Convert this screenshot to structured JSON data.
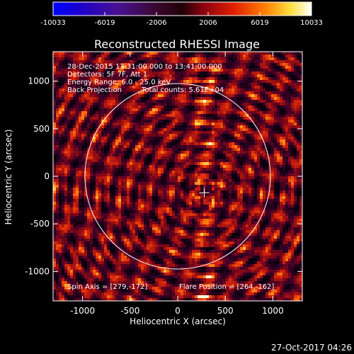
{
  "colorbar": {
    "ticks": [
      "-10033",
      "-6019",
      "-2006",
      "2006",
      "6019",
      "10033"
    ],
    "min": -10033,
    "max": 10033
  },
  "plot": {
    "title": "Reconstructed RHESSI Image",
    "xlabel": "Heliocentric X (arcsec)",
    "ylabel": "Heliocentric Y (arcsec)",
    "x_ticks": [
      "-1000",
      "-500",
      "0",
      "500",
      "1000"
    ],
    "y_ticks": [
      "1000",
      "500",
      "0",
      "-500",
      "-1000"
    ],
    "x_range": [
      -1310,
      1310
    ],
    "y_range": [
      -1310,
      1310
    ],
    "solar_radius_arcsec": 975,
    "flare_cross_xy": [
      279,
      -172
    ]
  },
  "info": {
    "line1": "28-Dec-2015 13:31:00.000 to 13:41:00.000",
    "line2": "Detectors: 5F 7F, Att 1",
    "line3": "Energy Range: 6.0 - 25.0 keV",
    "line4_method": "Back Projection",
    "line4_counts": "Total counts: 5.61E+04",
    "spin_axis": "Spin Axis = [279,-172]",
    "flare_position": "Flare Position = [264,-162]"
  },
  "timestamp": "27-Oct-2017 04:26",
  "colors": {
    "background": "#000000",
    "foreground": "#ffffff"
  }
}
